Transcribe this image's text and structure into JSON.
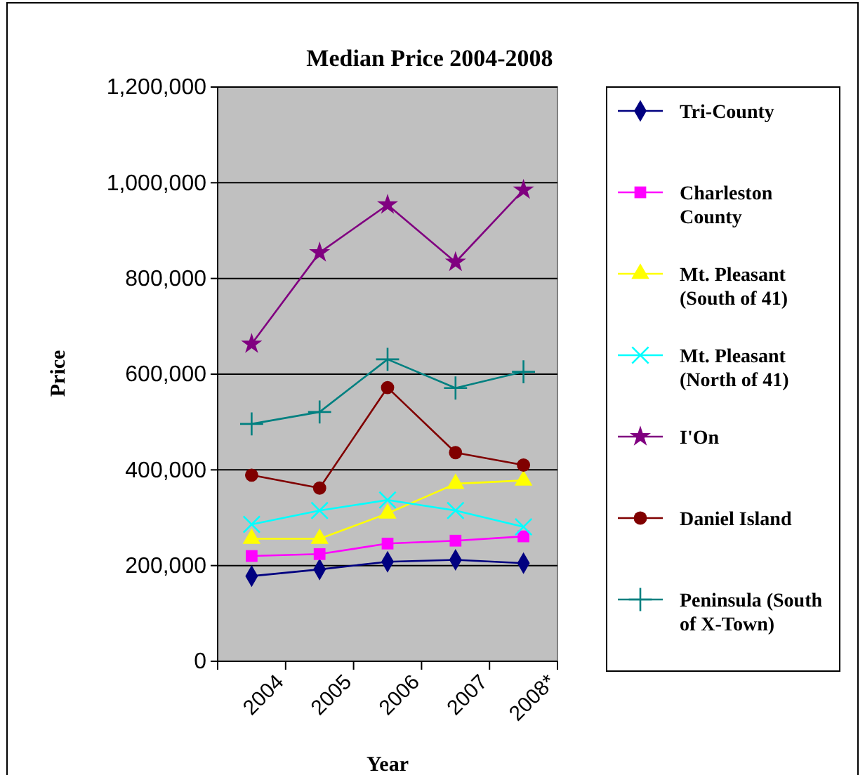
{
  "chart_data": {
    "type": "line",
    "title": "Median Price 2004-2008",
    "xlabel": "Year",
    "ylabel": "Price",
    "categories": [
      "2004",
      "2005",
      "2006",
      "2007",
      "2008*"
    ],
    "ylim": [
      0,
      1200000
    ],
    "yticks": [
      {
        "value": 0,
        "label": "0"
      },
      {
        "value": 200000,
        "label": "200,000"
      },
      {
        "value": 400000,
        "label": "400,000"
      },
      {
        "value": 600000,
        "label": "600,000"
      },
      {
        "value": 800000,
        "label": "800,000"
      },
      {
        "value": 1000000,
        "label": "1,000,000"
      },
      {
        "value": 1200000,
        "label": "1,200,000"
      }
    ],
    "grid": "y",
    "legend": "right",
    "series": [
      {
        "name": "Tri-County",
        "color": "#000080",
        "marker": "diamond",
        "values": [
          178000,
          192000,
          208000,
          212000,
          205000
        ]
      },
      {
        "name": "Charleston County",
        "color": "#ff00ff",
        "marker": "square",
        "values": [
          220000,
          224000,
          246000,
          252000,
          261000
        ]
      },
      {
        "name": "Mt. Pleasant (South of 41)",
        "color": "#ffff00",
        "marker": "triangle",
        "values": [
          256000,
          256000,
          309000,
          371000,
          378000
        ]
      },
      {
        "name": "Mt. Pleasant (North of 41)",
        "color": "#00ffff",
        "marker": "cross",
        "values": [
          286000,
          315000,
          337000,
          315000,
          281000
        ]
      },
      {
        "name": "I'On",
        "color": "#800080",
        "marker": "star",
        "values": [
          663000,
          854000,
          954000,
          834000,
          985000
        ]
      },
      {
        "name": "Daniel Island",
        "color": "#800000",
        "marker": "circle",
        "values": [
          389000,
          362000,
          572000,
          436000,
          410000
        ]
      },
      {
        "name": "Peninsula (South of X-Town)",
        "color": "#008080",
        "marker": "plus",
        "values": [
          496000,
          521000,
          631000,
          571000,
          605000
        ]
      }
    ]
  }
}
